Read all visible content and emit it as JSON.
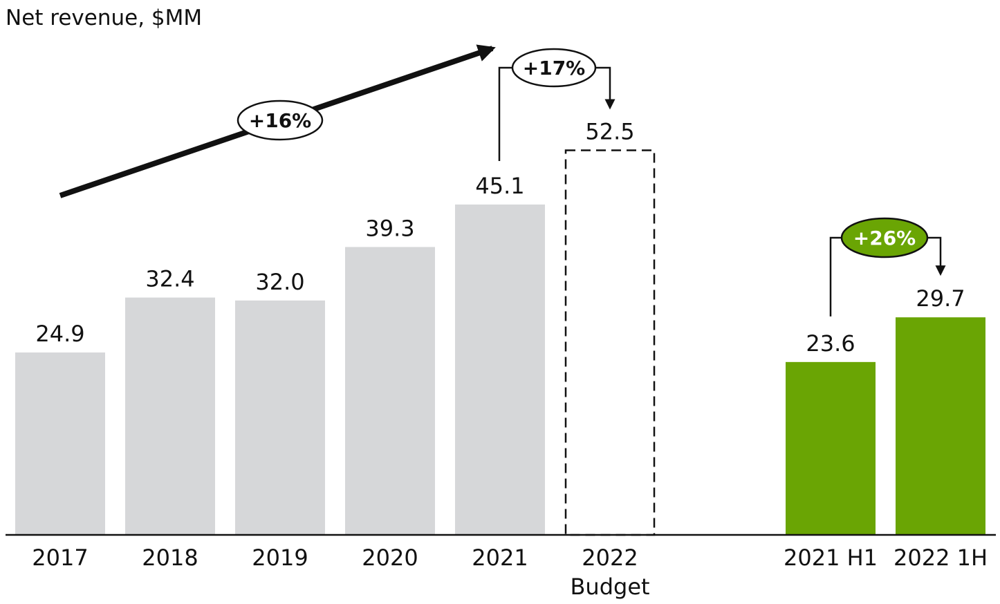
{
  "chart_data": {
    "type": "bar",
    "title": "Net revenue, $MM",
    "ylim": [
      0,
      60
    ],
    "grid": false,
    "legend": "none",
    "categories": [
      {
        "label": "2017",
        "sublabel": ""
      },
      {
        "label": "2018",
        "sublabel": ""
      },
      {
        "label": "2019",
        "sublabel": ""
      },
      {
        "label": "2020",
        "sublabel": ""
      },
      {
        "label": "2021",
        "sublabel": ""
      },
      {
        "label": "2022",
        "sublabel": "Budget"
      },
      {
        "label": "2021 H1",
        "sublabel": ""
      },
      {
        "label": "2022 1H",
        "sublabel": ""
      }
    ],
    "values": [
      24.9,
      32.4,
      32.0,
      39.3,
      45.1,
      52.5,
      23.6,
      29.7
    ],
    "value_labels": [
      "24.9",
      "32.4",
      "32.0",
      "39.3",
      "45.1",
      "52.5",
      "23.6",
      "29.7"
    ],
    "bar_styles": [
      "solid-gray",
      "solid-gray",
      "solid-gray",
      "solid-gray",
      "solid-gray",
      "dashed-outline",
      "solid-green",
      "solid-green"
    ],
    "annotations": [
      {
        "type": "trend-arrow",
        "label": "+16%",
        "from": "2017",
        "to": "2021"
      },
      {
        "type": "bracket-arrow",
        "label": "+17%",
        "from": "2021",
        "to": "2022"
      },
      {
        "type": "bracket-arrow",
        "label": "+26%",
        "from": "2021 H1",
        "to": "2022 1H"
      }
    ]
  },
  "colors": {
    "gray_bar": "#d6d7d9",
    "green_bar": "#6aa504",
    "text": "#111111",
    "axis": "#111111"
  }
}
